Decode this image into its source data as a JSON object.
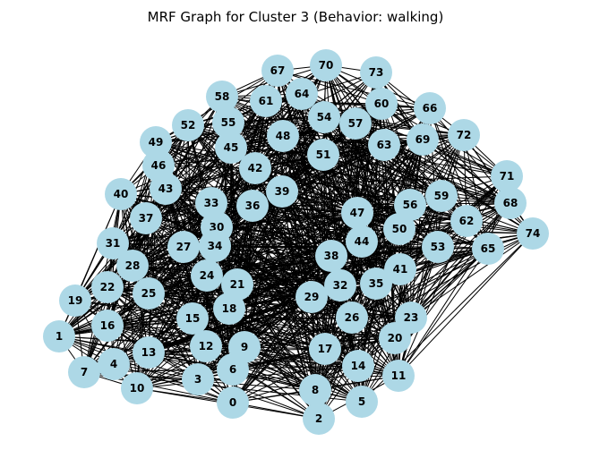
{
  "title": "MRF Graph for Cluster 3 (Behavior: walking)",
  "colors": {
    "node_fill": "#add8e6",
    "edge": "#000000",
    "label": "#000000",
    "background": "#ffffff"
  },
  "nodes": [
    "0",
    "1",
    "2",
    "3",
    "4",
    "5",
    "6",
    "7",
    "8",
    "9",
    "10",
    "11",
    "12",
    "13",
    "14",
    "15",
    "16",
    "17",
    "18",
    "19",
    "20",
    "21",
    "22",
    "23",
    "24",
    "25",
    "26",
    "27",
    "28",
    "29",
    "30",
    "31",
    "32",
    "33",
    "34",
    "35",
    "36",
    "37",
    "38",
    "39",
    "40",
    "41",
    "42",
    "43",
    "44",
    "45",
    "46",
    "47",
    "48",
    "49",
    "50",
    "51",
    "52",
    "53",
    "54",
    "55",
    "56",
    "57",
    "58",
    "59",
    "60",
    "61",
    "62",
    "63",
    "64",
    "65",
    "66",
    "67",
    "68",
    "69",
    "70",
    "71",
    "72",
    "73",
    "74"
  ],
  "edges_note": ""
}
